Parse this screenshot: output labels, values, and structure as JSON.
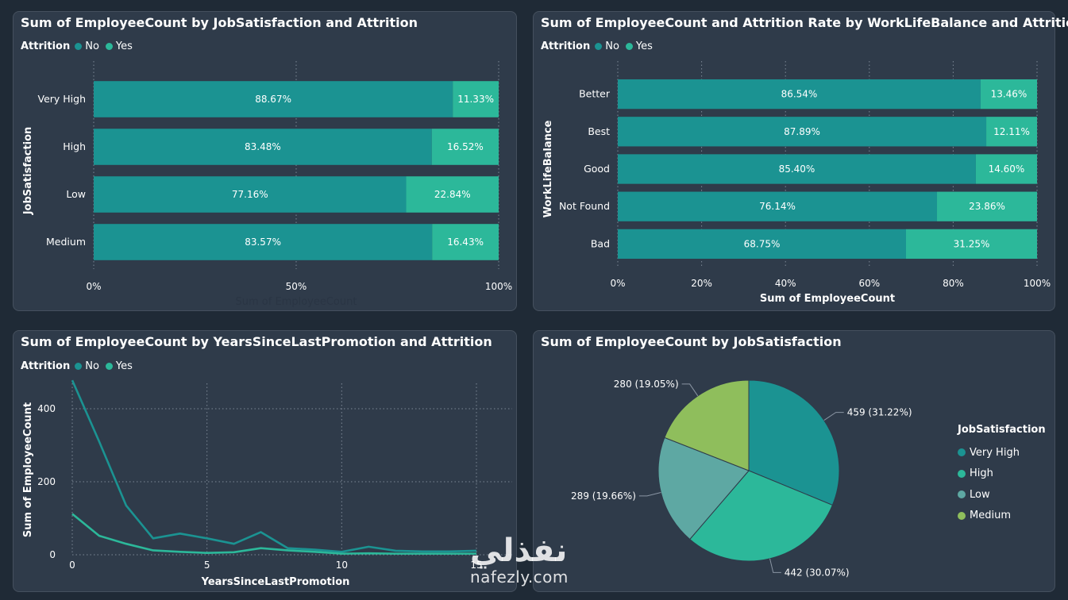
{
  "colors": {
    "no": "#1b9392",
    "yes": "#2cb89a",
    "very_high": "#1b9392",
    "high": "#2cb89a",
    "low": "#5ea8a3",
    "medium": "#8fbe5c",
    "background": "#1f2a36",
    "card": "#2f3b4a"
  },
  "legend": {
    "title": "Attrition",
    "no": "No",
    "yes": "Yes"
  },
  "charts": {
    "job_satisfaction": {
      "title": "Sum of EmployeeCount by JobSatisfaction and Attrition",
      "xlabel": "Sum of EmployeeCount",
      "ylabel": "JobSatisfaction"
    },
    "work_life": {
      "title": "Sum of EmployeeCount and Attrition Rate by WorkLifeBalance and Attrition",
      "xlabel": "Sum of EmployeeCount",
      "ylabel": "WorkLifeBalance"
    },
    "promotion": {
      "title": "Sum of EmployeeCount by YearsSinceLastPromotion and Attrition",
      "xlabel": "YearsSinceLastPromotion",
      "ylabel": "Sum of EmployeeCount"
    },
    "pie": {
      "title": "Sum of EmployeeCount by JobSatisfaction",
      "legend_title": "JobSatisfaction",
      "legend_items": [
        "Very High",
        "High",
        "Low",
        "Medium"
      ]
    }
  },
  "watermark": {
    "arabic": "نفذلي",
    "latin": "nafezly.com"
  },
  "chart_data": [
    {
      "type": "bar",
      "orientation": "horizontal",
      "stacked": "100%",
      "categories": [
        "Very High",
        "High",
        "Low",
        "Medium"
      ],
      "series": [
        {
          "name": "No",
          "values": [
            88.67,
            83.48,
            77.16,
            83.57
          ]
        },
        {
          "name": "Yes",
          "values": [
            11.33,
            16.52,
            22.84,
            16.43
          ]
        }
      ],
      "data_labels": {
        "No": [
          "88.67%",
          "83.48%",
          "77.16%",
          "83.57%"
        ],
        "Yes": [
          "11.33%",
          "16.52%",
          "22.84%",
          "16.43%"
        ]
      },
      "xticks": [
        "0%",
        "50%",
        "100%"
      ],
      "xtick_values": [
        0,
        50,
        100
      ],
      "xlim": [
        0,
        100
      ],
      "grid": true
    },
    {
      "type": "bar",
      "orientation": "horizontal",
      "stacked": "100%",
      "categories": [
        "Better",
        "Best",
        "Good",
        "Not Found",
        "Bad"
      ],
      "series": [
        {
          "name": "No",
          "values": [
            86.54,
            87.89,
            85.4,
            76.14,
            68.75
          ]
        },
        {
          "name": "Yes",
          "values": [
            13.46,
            12.11,
            14.6,
            23.86,
            31.25
          ]
        }
      ],
      "data_labels": {
        "No": [
          "86.54%",
          "87.89%",
          "85.40%",
          "76.14%",
          "68.75%"
        ],
        "Yes": [
          "13.46%",
          "12.11%",
          "14.60%",
          "23.86%",
          "31.25%"
        ]
      },
      "xticks": [
        "0%",
        "20%",
        "40%",
        "60%",
        "80%",
        "100%"
      ],
      "xtick_values": [
        0,
        20,
        40,
        60,
        80,
        100
      ],
      "xlim": [
        0,
        100
      ],
      "grid": true
    },
    {
      "type": "line",
      "x": [
        0,
        1,
        2,
        3,
        4,
        5,
        6,
        7,
        8,
        9,
        10,
        11,
        12,
        13,
        14,
        15
      ],
      "series": [
        {
          "name": "No",
          "values": [
            478,
            310,
            135,
            45,
            58,
            45,
            30,
            62,
            18,
            14,
            8,
            22,
            11,
            9,
            9,
            11
          ]
        },
        {
          "name": "Yes",
          "values": [
            112,
            52,
            30,
            12,
            8,
            5,
            7,
            18,
            12,
            8,
            3,
            4,
            3,
            3,
            3,
            3
          ]
        }
      ],
      "xticks": [
        "0",
        "5",
        "10",
        "15"
      ],
      "xtick_values": [
        0,
        5,
        10,
        15
      ],
      "yticks": [
        "0",
        "200",
        "400"
      ],
      "ytick_values": [
        0,
        200,
        400
      ],
      "xlim": [
        0,
        15
      ],
      "ylim": [
        0,
        500
      ],
      "grid": true
    },
    {
      "type": "pie",
      "categories": [
        "Very High",
        "High",
        "Low",
        "Medium"
      ],
      "values": [
        459,
        442,
        289,
        280
      ],
      "data_labels": [
        "459 (31.22%)",
        "442 (30.07%)",
        "289 (19.66%)",
        "280 (19.05%)"
      ]
    }
  ]
}
